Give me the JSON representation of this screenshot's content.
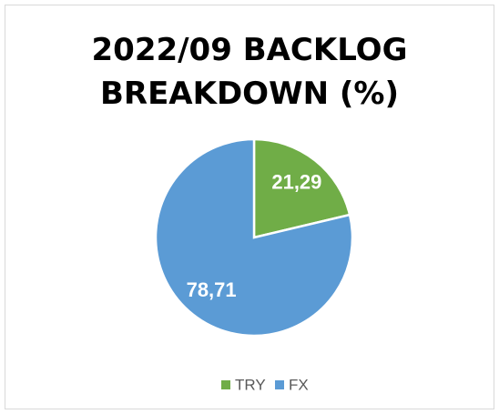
{
  "chart_data": {
    "type": "pie",
    "title": "2022/09 BACKLOG BREAKDOWN (%)",
    "categories": [
      "TRY",
      "FX"
    ],
    "values": [
      21.29,
      78.71
    ],
    "value_labels": [
      "21,29",
      "78,71"
    ],
    "colors": [
      "#70ad47",
      "#5b9bd5"
    ],
    "legend": "bottom"
  }
}
